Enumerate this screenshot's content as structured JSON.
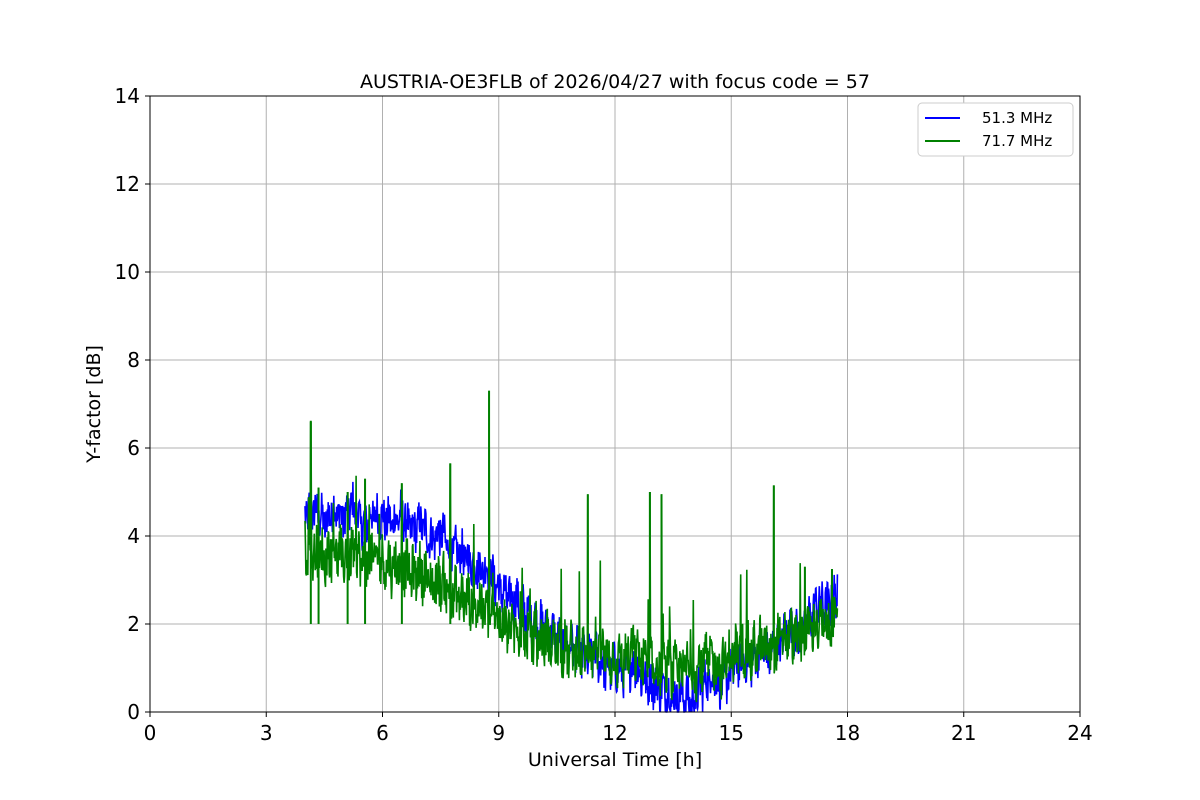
{
  "chart_data": {
    "type": "line",
    "title": "AUSTRIA-OE3FLB of 2026/04/27 with focus code = 57",
    "xlabel": "Universal Time [h]",
    "ylabel": "Y-factor [dB]",
    "xlim": [
      0,
      24
    ],
    "ylim": [
      0,
      14
    ],
    "xticks": [
      0,
      3,
      6,
      9,
      12,
      15,
      18,
      21,
      24
    ],
    "yticks": [
      0,
      2,
      4,
      6,
      8,
      10,
      12,
      14
    ],
    "grid": true,
    "legend_position": "top-right",
    "series": [
      {
        "name": "51.3 MHz",
        "color": "#0000ff",
        "x": [
          4.0,
          4.25,
          4.5,
          4.75,
          5.0,
          5.25,
          5.5,
          5.75,
          6.0,
          6.25,
          6.5,
          6.75,
          7.0,
          7.25,
          7.5,
          7.75,
          8.0,
          8.25,
          8.5,
          8.75,
          9.0,
          9.25,
          9.5,
          9.75,
          10.0,
          10.25,
          10.5,
          10.75,
          11.0,
          11.25,
          11.5,
          11.75,
          12.0,
          12.25,
          12.5,
          12.75,
          13.0,
          13.25,
          13.5,
          13.75,
          14.0,
          14.25,
          14.5,
          14.75,
          15.0,
          15.25,
          15.5,
          15.75,
          16.0,
          16.25,
          16.5,
          16.75,
          17.0,
          17.25,
          17.5,
          17.75
        ],
        "y": [
          4.5,
          4.6,
          4.3,
          4.6,
          4.4,
          4.7,
          4.2,
          4.5,
          4.4,
          4.3,
          4.5,
          4.1,
          4.3,
          3.9,
          4.1,
          3.7,
          3.6,
          3.4,
          3.3,
          3.2,
          2.8,
          2.6,
          2.5,
          2.2,
          2.0,
          1.9,
          1.7,
          1.5,
          1.4,
          1.2,
          1.3,
          1.0,
          1.0,
          0.9,
          1.1,
          0.7,
          0.6,
          0.5,
          0.3,
          0.4,
          0.2,
          0.6,
          0.8,
          0.6,
          0.9,
          1.2,
          1.1,
          1.4,
          1.3,
          1.6,
          1.9,
          1.7,
          2.1,
          2.5,
          2.4,
          2.8
        ]
      },
      {
        "name": "71.7 MHz",
        "color": "#008000",
        "x": [
          4.0,
          4.25,
          4.5,
          4.75,
          5.0,
          5.25,
          5.5,
          5.75,
          6.0,
          6.25,
          6.5,
          6.75,
          7.0,
          7.25,
          7.5,
          7.75,
          8.0,
          8.25,
          8.5,
          8.75,
          9.0,
          9.25,
          9.5,
          9.75,
          10.0,
          10.25,
          10.5,
          10.75,
          11.0,
          11.25,
          11.5,
          11.75,
          12.0,
          12.25,
          12.5,
          12.75,
          13.0,
          13.25,
          13.5,
          13.75,
          14.0,
          14.25,
          14.5,
          14.75,
          15.0,
          15.25,
          15.5,
          15.75,
          16.0,
          16.25,
          16.5,
          16.75,
          17.0,
          17.25,
          17.5,
          17.75
        ],
        "y": [
          3.8,
          3.6,
          3.5,
          3.7,
          3.5,
          3.6,
          3.4,
          3.5,
          3.4,
          3.3,
          3.4,
          3.1,
          3.2,
          2.9,
          3.0,
          2.7,
          2.6,
          2.5,
          2.4,
          2.2,
          2.1,
          1.9,
          1.9,
          1.7,
          1.6,
          1.7,
          1.5,
          1.4,
          1.4,
          1.3,
          1.5,
          1.3,
          1.2,
          1.2,
          1.4,
          1.1,
          1.0,
          1.1,
          0.9,
          1.0,
          0.9,
          1.1,
          1.2,
          1.0,
          1.3,
          1.4,
          1.3,
          1.5,
          1.4,
          1.6,
          1.8,
          1.6,
          1.9,
          2.0,
          1.9,
          2.1
        ]
      }
    ],
    "spikes_71_7": [
      {
        "x": 4.15,
        "y": 6.6
      },
      {
        "x": 4.35,
        "y": 5.1
      },
      {
        "x": 5.1,
        "y": 5.0
      },
      {
        "x": 5.55,
        "y": 5.3
      },
      {
        "x": 6.5,
        "y": 5.2
      },
      {
        "x": 7.75,
        "y": 5.65
      },
      {
        "x": 8.75,
        "y": 7.3
      },
      {
        "x": 11.3,
        "y": 4.95
      },
      {
        "x": 12.9,
        "y": 5.0
      },
      {
        "x": 13.2,
        "y": 4.95
      },
      {
        "x": 16.1,
        "y": 5.15
      },
      {
        "x": 16.9,
        "y": 3.3
      },
      {
        "x": 17.6,
        "y": 3.25
      }
    ]
  }
}
